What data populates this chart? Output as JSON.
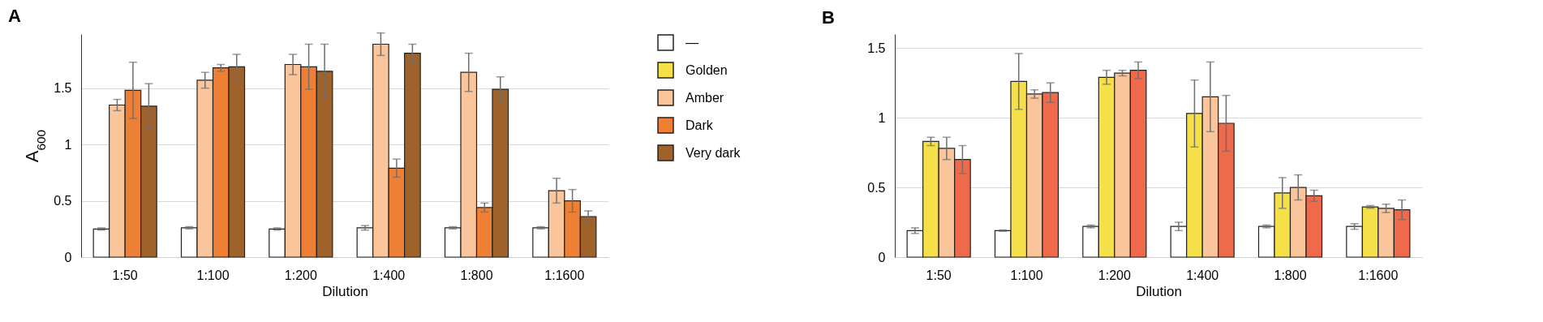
{
  "chart_data": [
    {
      "type": "bar",
      "title": "A",
      "xlabel": "Dilution",
      "ylabel": "A$_{600}$",
      "categories": [
        "1:50",
        "1:100",
        "1:200",
        "1:400",
        "1:800",
        "1:1600"
      ],
      "ylim": [
        0,
        1.98
      ],
      "yticks": [
        0,
        0.5,
        1,
        1.5
      ],
      "grid": "y",
      "legend": "right",
      "series": [
        {
          "name": "—",
          "color": "#ffffff",
          "values": [
            0.25,
            0.26,
            0.25,
            0.26,
            0.26,
            0.26
          ],
          "errors": [
            0.01,
            0.01,
            0.01,
            0.02,
            0.01,
            0.01
          ]
        },
        {
          "name": "Golden",
          "color": "#f5e04a",
          "values": [
            null,
            null,
            null,
            null,
            null,
            null
          ]
        },
        {
          "name": "Amber",
          "color": "#fbc59b",
          "values": [
            1.35,
            1.57,
            1.71,
            1.89,
            1.64,
            0.59
          ],
          "errors": [
            0.05,
            0.07,
            0.09,
            0.1,
            0.17,
            0.11
          ]
        },
        {
          "name": "Dark",
          "color": "#ee8035",
          "values": [
            1.48,
            1.68,
            1.69,
            0.79,
            0.44,
            0.5
          ],
          "errors": [
            0.25,
            0.03,
            0.2,
            0.08,
            0.04,
            0.1
          ]
        },
        {
          "name": "Very dark",
          "color": "#a0622b",
          "values": [
            1.34,
            1.69,
            1.65,
            1.81,
            1.49,
            0.36
          ],
          "errors": [
            0.2,
            0.11,
            0.24,
            0.08,
            0.11,
            0.05
          ]
        }
      ]
    },
    {
      "type": "bar",
      "title": "B",
      "xlabel": "Dilution",
      "categories": [
        "1:50",
        "1:100",
        "1:200",
        "1:400",
        "1:800",
        "1:1600"
      ],
      "ylim": [
        0,
        1.6
      ],
      "yticks": [
        0,
        0.5,
        1,
        1.5
      ],
      "grid": "y",
      "series": [
        {
          "color": "#ffffff",
          "values": [
            0.19,
            0.19,
            0.22,
            0.22,
            0.22,
            0.22
          ],
          "errors": [
            0.02,
            0.005,
            0.01,
            0.03,
            0.01,
            0.02
          ]
        },
        {
          "color": "#f5e04a",
          "values": [
            0.83,
            1.26,
            1.29,
            1.03,
            0.46,
            0.36
          ],
          "errors": [
            0.03,
            0.2,
            0.05,
            0.24,
            0.11,
            0.01
          ]
        },
        {
          "color": "#fbc59b",
          "values": [
            0.78,
            1.17,
            1.32,
            1.15,
            0.5,
            0.35
          ],
          "errors": [
            0.08,
            0.03,
            0.02,
            0.25,
            0.09,
            0.03
          ]
        },
        {
          "color": "#ee6a4a",
          "values": [
            0.7,
            1.18,
            1.34,
            0.96,
            0.44,
            0.34
          ],
          "errors": [
            0.1,
            0.07,
            0.06,
            0.2,
            0.04,
            0.07
          ]
        }
      ]
    }
  ]
}
